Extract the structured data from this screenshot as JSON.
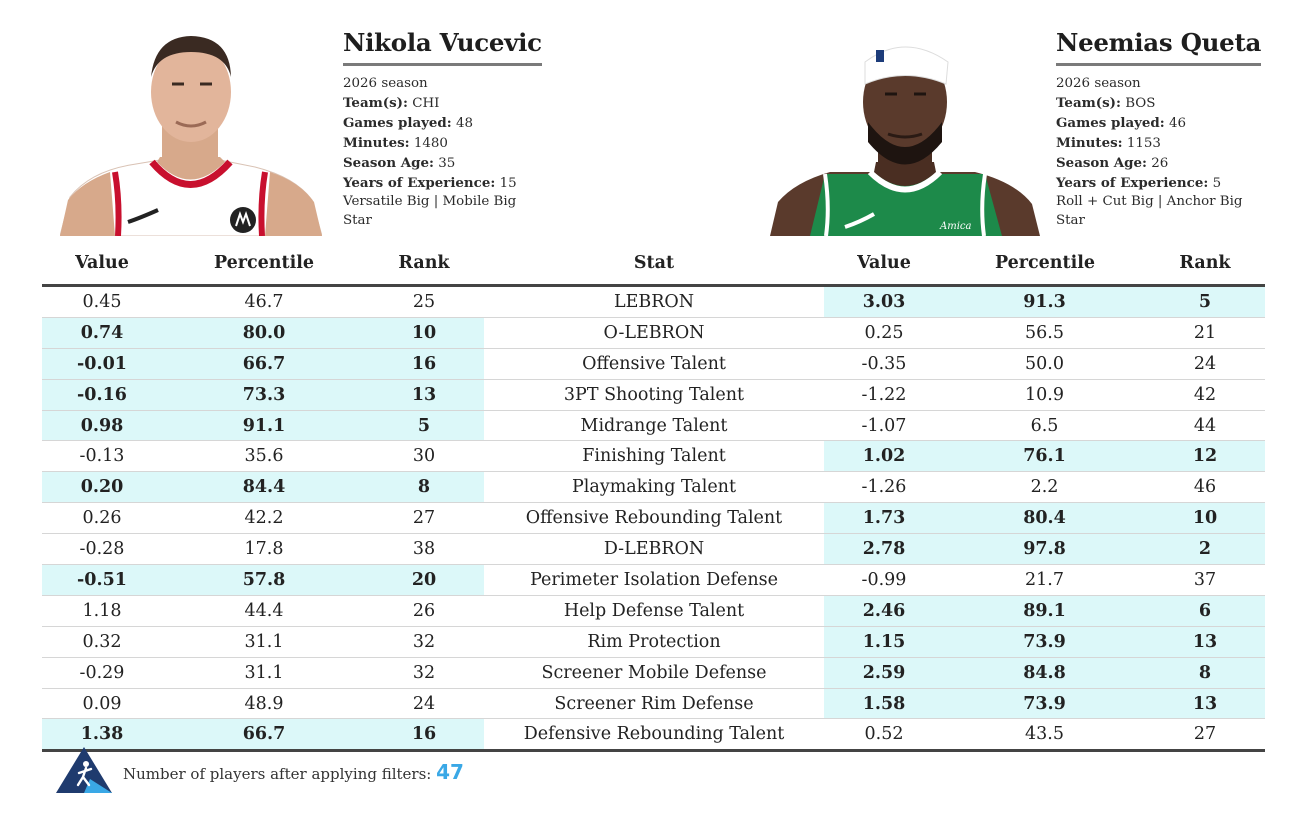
{
  "players": [
    {
      "name": "Nikola Vucevic",
      "season": "2026 season",
      "team_label": "Team(s):",
      "team": "CHI",
      "games_label": "Games played:",
      "games": "48",
      "minutes_label": "Minutes:",
      "minutes": "1480",
      "age_label": "Season Age:",
      "age": "35",
      "exp_label": "Years of Experience:",
      "exp": "15",
      "roles_line1": "Versatile Big | Mobile Big",
      "roles_line2": "Star",
      "jersey_color": "#ffffff",
      "trim_color": "#c8102e"
    },
    {
      "name": "Neemias Queta",
      "season": "2026 season",
      "team_label": "Team(s):",
      "team": "BOS",
      "games_label": "Games played:",
      "games": "46",
      "minutes_label": "Minutes:",
      "minutes": "1153",
      "age_label": "Season Age:",
      "age": "26",
      "exp_label": "Years of Experience:",
      "exp": "5",
      "roles_line1": "Roll + Cut Big | Anchor Big",
      "roles_line2": "Star",
      "jersey_color": "#1d8a4a",
      "trim_color": "#ffffff"
    }
  ],
  "table": {
    "headers": {
      "left_value": "Value",
      "left_percentile": "Percentile",
      "left_rank": "Rank",
      "stat": "Stat",
      "right_value": "Value",
      "right_percentile": "Percentile",
      "right_rank": "Rank"
    },
    "highlight_color": "#dcf8f9",
    "rows": [
      {
        "stat": "LEBRON",
        "l": [
          "0.45",
          "46.7",
          "25"
        ],
        "r": [
          "3.03",
          "91.3",
          "5"
        ],
        "winner": "right"
      },
      {
        "stat": "O-LEBRON",
        "l": [
          "0.74",
          "80.0",
          "10"
        ],
        "r": [
          "0.25",
          "56.5",
          "21"
        ],
        "winner": "left"
      },
      {
        "stat": "Offensive Talent",
        "l": [
          "-0.01",
          "66.7",
          "16"
        ],
        "r": [
          "-0.35",
          "50.0",
          "24"
        ],
        "winner": "left"
      },
      {
        "stat": "3PT Shooting Talent",
        "l": [
          "-0.16",
          "73.3",
          "13"
        ],
        "r": [
          "-1.22",
          "10.9",
          "42"
        ],
        "winner": "left"
      },
      {
        "stat": "Midrange Talent",
        "l": [
          "0.98",
          "91.1",
          "5"
        ],
        "r": [
          "-1.07",
          "6.5",
          "44"
        ],
        "winner": "left"
      },
      {
        "stat": "Finishing Talent",
        "l": [
          "-0.13",
          "35.6",
          "30"
        ],
        "r": [
          "1.02",
          "76.1",
          "12"
        ],
        "winner": "right"
      },
      {
        "stat": "Playmaking Talent",
        "l": [
          "0.20",
          "84.4",
          "8"
        ],
        "r": [
          "-1.26",
          "2.2",
          "46"
        ],
        "winner": "left"
      },
      {
        "stat": "Offensive Rebounding Talent",
        "l": [
          "0.26",
          "42.2",
          "27"
        ],
        "r": [
          "1.73",
          "80.4",
          "10"
        ],
        "winner": "right"
      },
      {
        "stat": "D-LEBRON",
        "l": [
          "-0.28",
          "17.8",
          "38"
        ],
        "r": [
          "2.78",
          "97.8",
          "2"
        ],
        "winner": "right"
      },
      {
        "stat": "Perimeter Isolation Defense",
        "l": [
          "-0.51",
          "57.8",
          "20"
        ],
        "r": [
          "-0.99",
          "21.7",
          "37"
        ],
        "winner": "left"
      },
      {
        "stat": "Help Defense Talent",
        "l": [
          "1.18",
          "44.4",
          "26"
        ],
        "r": [
          "2.46",
          "89.1",
          "6"
        ],
        "winner": "right"
      },
      {
        "stat": "Rim Protection",
        "l": [
          "0.32",
          "31.1",
          "32"
        ],
        "r": [
          "1.15",
          "73.9",
          "13"
        ],
        "winner": "right"
      },
      {
        "stat": "Screener Mobile Defense",
        "l": [
          "-0.29",
          "31.1",
          "32"
        ],
        "r": [
          "2.59",
          "84.8",
          "8"
        ],
        "winner": "right"
      },
      {
        "stat": "Screener Rim Defense",
        "l": [
          "0.09",
          "48.9",
          "24"
        ],
        "r": [
          "1.58",
          "73.9",
          "13"
        ],
        "winner": "right"
      },
      {
        "stat": "Defensive Rebounding Talent",
        "l": [
          "1.38",
          "66.7",
          "16"
        ],
        "r": [
          "0.52",
          "43.5",
          "27"
        ],
        "winner": "left"
      }
    ]
  },
  "footer": {
    "text": "Number of players after applying filters: ",
    "count": "47",
    "logo_icon": "basketball-player-logo-icon",
    "logo_color": "#1f3b6e",
    "accent_color": "#3aa8e6"
  }
}
